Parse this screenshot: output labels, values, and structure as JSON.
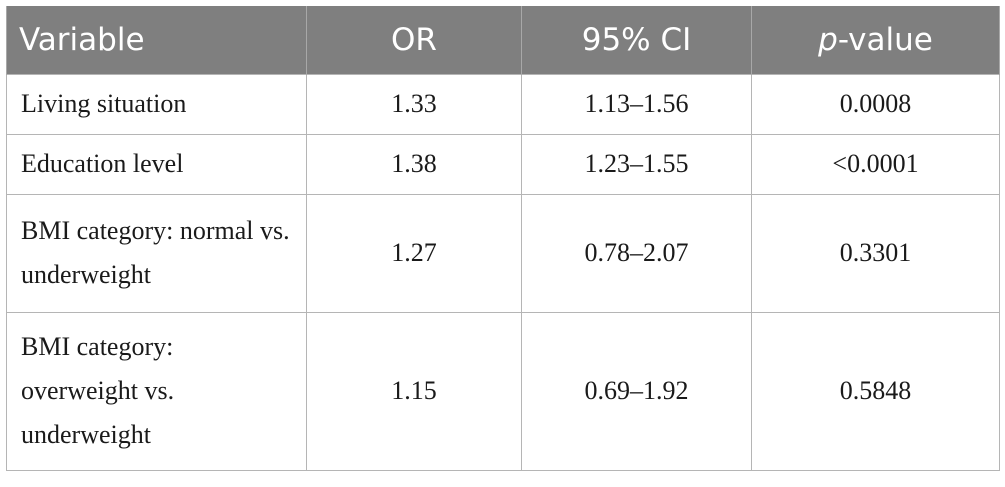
{
  "table": {
    "headers": {
      "variable": "Variable",
      "or": "OR",
      "ci": "95% CI",
      "p_italic": "p",
      "p_rest": "-value"
    },
    "rows": [
      {
        "variable": "Living situation",
        "or": "1.33",
        "ci": "1.13–1.56",
        "p": "0.0008"
      },
      {
        "variable": "Education level",
        "or": "1.38",
        "ci": "1.23–1.55",
        "p": "<0.0001"
      },
      {
        "variable": "BMI category: normal vs. underweight",
        "or": "1.27",
        "ci": "0.78–2.07",
        "p": "0.3301"
      },
      {
        "variable": "BMI category: overweight vs. underweight",
        "or": "1.15",
        "ci": "0.69–1.92",
        "p": "0.5848"
      }
    ]
  }
}
